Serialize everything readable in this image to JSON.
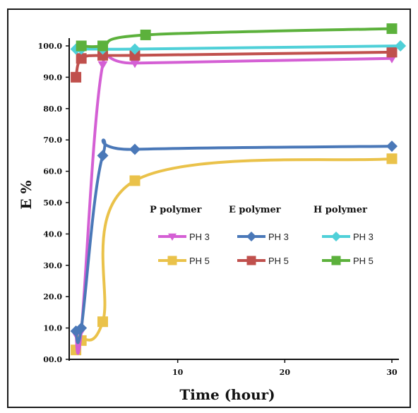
{
  "chart_data": {
    "type": "line",
    "xlabel": "Time (hour)",
    "ylabel": "E %",
    "xlim": [
      0,
      31
    ],
    "ylim": [
      0,
      100
    ],
    "x_ticks": [
      10,
      20,
      30
    ],
    "y_ticks": [
      {
        "value": 0,
        "label": "00.0"
      },
      {
        "value": 10,
        "label": "10.0"
      },
      {
        "value": 20,
        "label": "20.0"
      },
      {
        "value": 30,
        "label": "30.0"
      },
      {
        "value": 40,
        "label": "40.0"
      },
      {
        "value": 50,
        "label": "50.0"
      },
      {
        "value": 60,
        "label": "60.0"
      },
      {
        "value": 70,
        "label": "70.0"
      },
      {
        "value": 80,
        "label": "80.0"
      },
      {
        "value": 90,
        "label": "90.0"
      },
      {
        "value": 100,
        "label": "100.0"
      }
    ],
    "grid": false,
    "legend_groups": [
      {
        "title": "P polymer",
        "series": [
          0,
          1
        ]
      },
      {
        "title": "E polymer",
        "series": [
          2,
          3
        ]
      },
      {
        "title": "H polymer",
        "series": [
          4,
          5
        ]
      }
    ],
    "series": [
      {
        "name": "PH 3",
        "group": "P polymer",
        "color": "#d45fd4",
        "marker": "triangle-down",
        "x": [
          0.5,
          1,
          3,
          6,
          30
        ],
        "y": [
          8,
          9,
          94,
          94.5,
          96
        ]
      },
      {
        "name": "PH 5",
        "group": "P polymer",
        "color": "#eac24a",
        "marker": "square",
        "x": [
          0.5,
          1,
          3,
          6,
          30
        ],
        "y": [
          3,
          6,
          12,
          57,
          64
        ]
      },
      {
        "name": "PH 3",
        "group": "E polymer",
        "color": "#4a78b8",
        "marker": "diamond",
        "x": [
          0.5,
          1,
          3,
          6,
          30
        ],
        "y": [
          9,
          10,
          65,
          67,
          68
        ]
      },
      {
        "name": "PH 5",
        "group": "E polymer",
        "color": "#c0504d",
        "marker": "square",
        "x": [
          0.5,
          1,
          3,
          6,
          30
        ],
        "y": [
          90,
          96,
          97,
          97,
          98
        ]
      },
      {
        "name": "PH 3",
        "group": "H polymer",
        "color": "#4fd0d8",
        "marker": "diamond",
        "x": [
          0.5,
          1,
          3,
          6,
          30.8
        ],
        "y": [
          99,
          99,
          99,
          99,
          100
        ]
      },
      {
        "name": "PH 5",
        "group": "H polymer",
        "color": "#5cb13c",
        "marker": "square",
        "x": [
          1,
          3,
          7,
          30
        ],
        "y": [
          100,
          100,
          103.5,
          105.5
        ]
      }
    ]
  }
}
